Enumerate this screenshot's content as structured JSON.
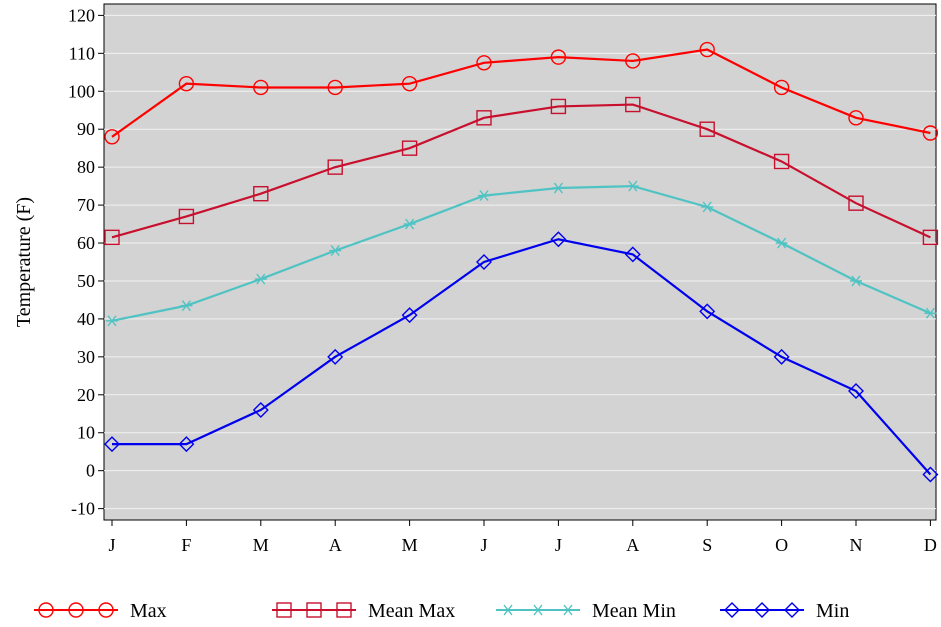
{
  "chart_data": {
    "type": "line",
    "title": "",
    "xlabel": "",
    "ylabel": "Temperature (F)",
    "categories": [
      "J",
      "F",
      "M",
      "A",
      "M",
      "J",
      "J",
      "A",
      "S",
      "O",
      "N",
      "D"
    ],
    "ylim": [
      -13,
      123
    ],
    "yticks": [
      -10,
      0,
      10,
      20,
      30,
      40,
      50,
      60,
      70,
      80,
      90,
      100,
      110,
      120
    ],
    "grid": true,
    "legend_position": "bottom",
    "plot_background": "#d3d3d3",
    "series": [
      {
        "name": "Max",
        "color": "#ff0000",
        "marker": "circle",
        "values": [
          88,
          102,
          101,
          101,
          102,
          107.5,
          109,
          108,
          111,
          101,
          93,
          89
        ]
      },
      {
        "name": "Mean Max",
        "color": "#c8102e",
        "marker": "square",
        "values": [
          61.5,
          67,
          73,
          80,
          85,
          93,
          96,
          96.5,
          90,
          81.5,
          70.5,
          61.5
        ]
      },
      {
        "name": "Mean Min",
        "color": "#4fc3c3",
        "marker": "asterisk",
        "values": [
          39.5,
          43.5,
          50.5,
          58,
          65,
          72.5,
          74.5,
          75,
          69.5,
          60,
          50,
          41.5
        ]
      },
      {
        "name": "Min",
        "color": "#0000ee",
        "marker": "diamond",
        "values": [
          7,
          7,
          16,
          30,
          41,
          55,
          61,
          57,
          42,
          30,
          21,
          -1
        ]
      }
    ]
  }
}
